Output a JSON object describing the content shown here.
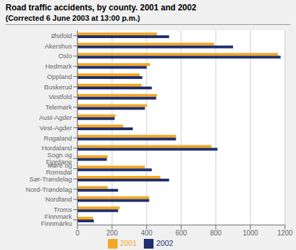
{
  "chart_data": {
    "type": "bar",
    "orientation": "horizontal",
    "title": "Road traffic accidents, by county. 2001 and 2002",
    "subtitle": "(Corrected 6 June 2003 at 13:00 p.m.)",
    "categories": [
      "Østfold",
      "Akershus",
      "Oslo",
      "Hedmark",
      "Oppland",
      "Buskerud",
      "Vestfold",
      "Telemark",
      "Aust-Agder",
      "Vest-Agder",
      "Rogaland",
      "Hordaland",
      "Sogn og Fjordane",
      "Møre og Romsdal",
      "Sør-Trøndelag",
      "Nord-Trøndelag",
      "Nordland",
      "Troms",
      "Finnmark Finnmárku"
    ],
    "series": [
      {
        "name": "2001",
        "color": "#f5a623",
        "values": [
          460,
          790,
          1160,
          420,
          360,
          370,
          460,
          400,
          220,
          265,
          570,
          775,
          175,
          390,
          480,
          175,
          415,
          245,
          90
        ]
      },
      {
        "name": "2002",
        "color": "#1f3070",
        "values": [
          530,
          900,
          1175,
          400,
          375,
          430,
          455,
          390,
          215,
          320,
          570,
          810,
          170,
          430,
          530,
          235,
          415,
          235,
          95
        ]
      }
    ],
    "xlim": [
      0,
      1200
    ],
    "xticks": [
      0,
      200,
      400,
      600,
      800,
      1000,
      1200
    ],
    "grid": true,
    "legend": "bottom"
  }
}
